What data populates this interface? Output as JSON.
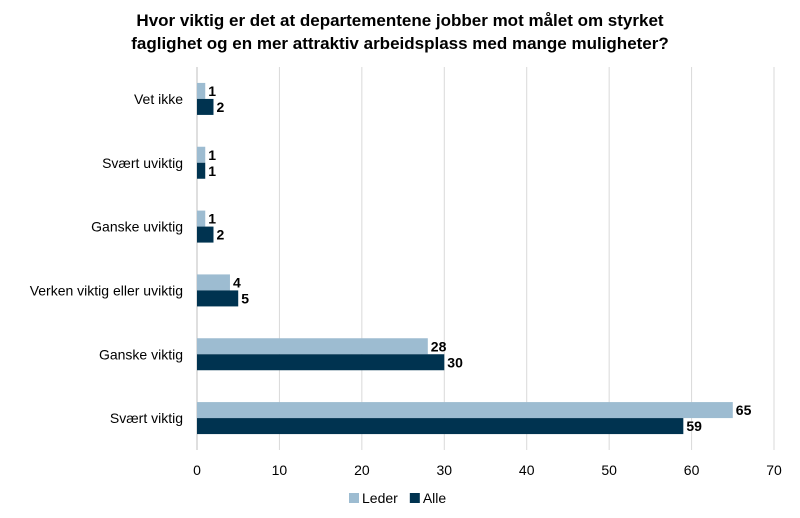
{
  "chart_data": {
    "type": "bar",
    "orientation": "horizontal",
    "title_lines": [
      "Hvor viktig er det at departementene jobber mot målet om styrket",
      "faglighet og en mer attraktiv arbeidsplass med mange muligheter?"
    ],
    "categories": [
      "Vet ikke",
      "Svært uviktig",
      "Ganske uviktig",
      "Verken viktig eller uviktig",
      "Ganske viktig",
      "Svært viktig"
    ],
    "series": [
      {
        "name": "Leder",
        "color": "#9dbcd1",
        "values": [
          1,
          1,
          1,
          4,
          28,
          65
        ]
      },
      {
        "name": "Alle",
        "color": "#003350",
        "values": [
          2,
          1,
          2,
          5,
          30,
          59
        ]
      }
    ],
    "xlim": [
      0,
      70
    ],
    "xticks": [
      "0",
      "10",
      "20",
      "30",
      "40",
      "50",
      "60",
      "70"
    ],
    "grid": true,
    "legend_position": "bottom"
  }
}
